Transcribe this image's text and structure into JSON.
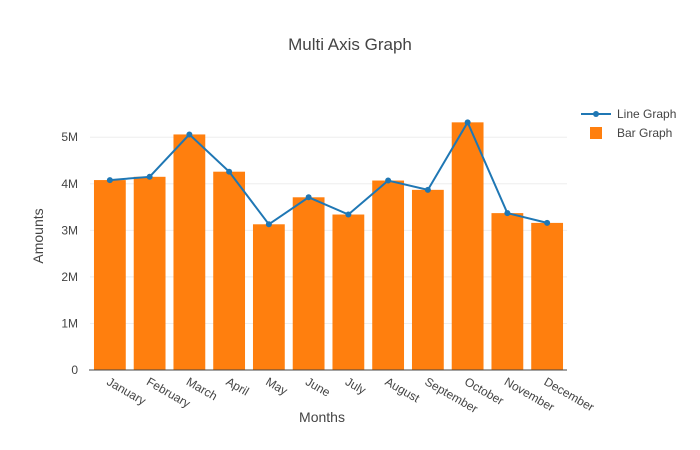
{
  "chart_data": {
    "type": "bar",
    "title": "Multi Axis Graph",
    "xlabel": "Months",
    "ylabel": "Amounts",
    "categories": [
      "January",
      "February",
      "March",
      "April",
      "May",
      "June",
      "July",
      "August",
      "September",
      "October",
      "November",
      "December"
    ],
    "ylim": [
      0,
      5800000
    ],
    "yticks": [
      0,
      1000000,
      2000000,
      3000000,
      4000000,
      5000000
    ],
    "ytick_labels": [
      "0",
      "1M",
      "2M",
      "3M",
      "4M",
      "5M"
    ],
    "grid": true,
    "legend_position": "top-right",
    "series": [
      {
        "name": "Line Graph",
        "type": "line",
        "color": "#1f77b4",
        "values": [
          4080000,
          4150000,
          5060000,
          4260000,
          3130000,
          3710000,
          3340000,
          4070000,
          3870000,
          5320000,
          3370000,
          3160000
        ]
      },
      {
        "name": "Bar Graph",
        "type": "bar",
        "color": "#ff7f0e",
        "values": [
          4080000,
          4150000,
          5060000,
          4260000,
          3130000,
          3710000,
          3340000,
          4070000,
          3870000,
          5320000,
          3370000,
          3160000
        ]
      }
    ]
  }
}
